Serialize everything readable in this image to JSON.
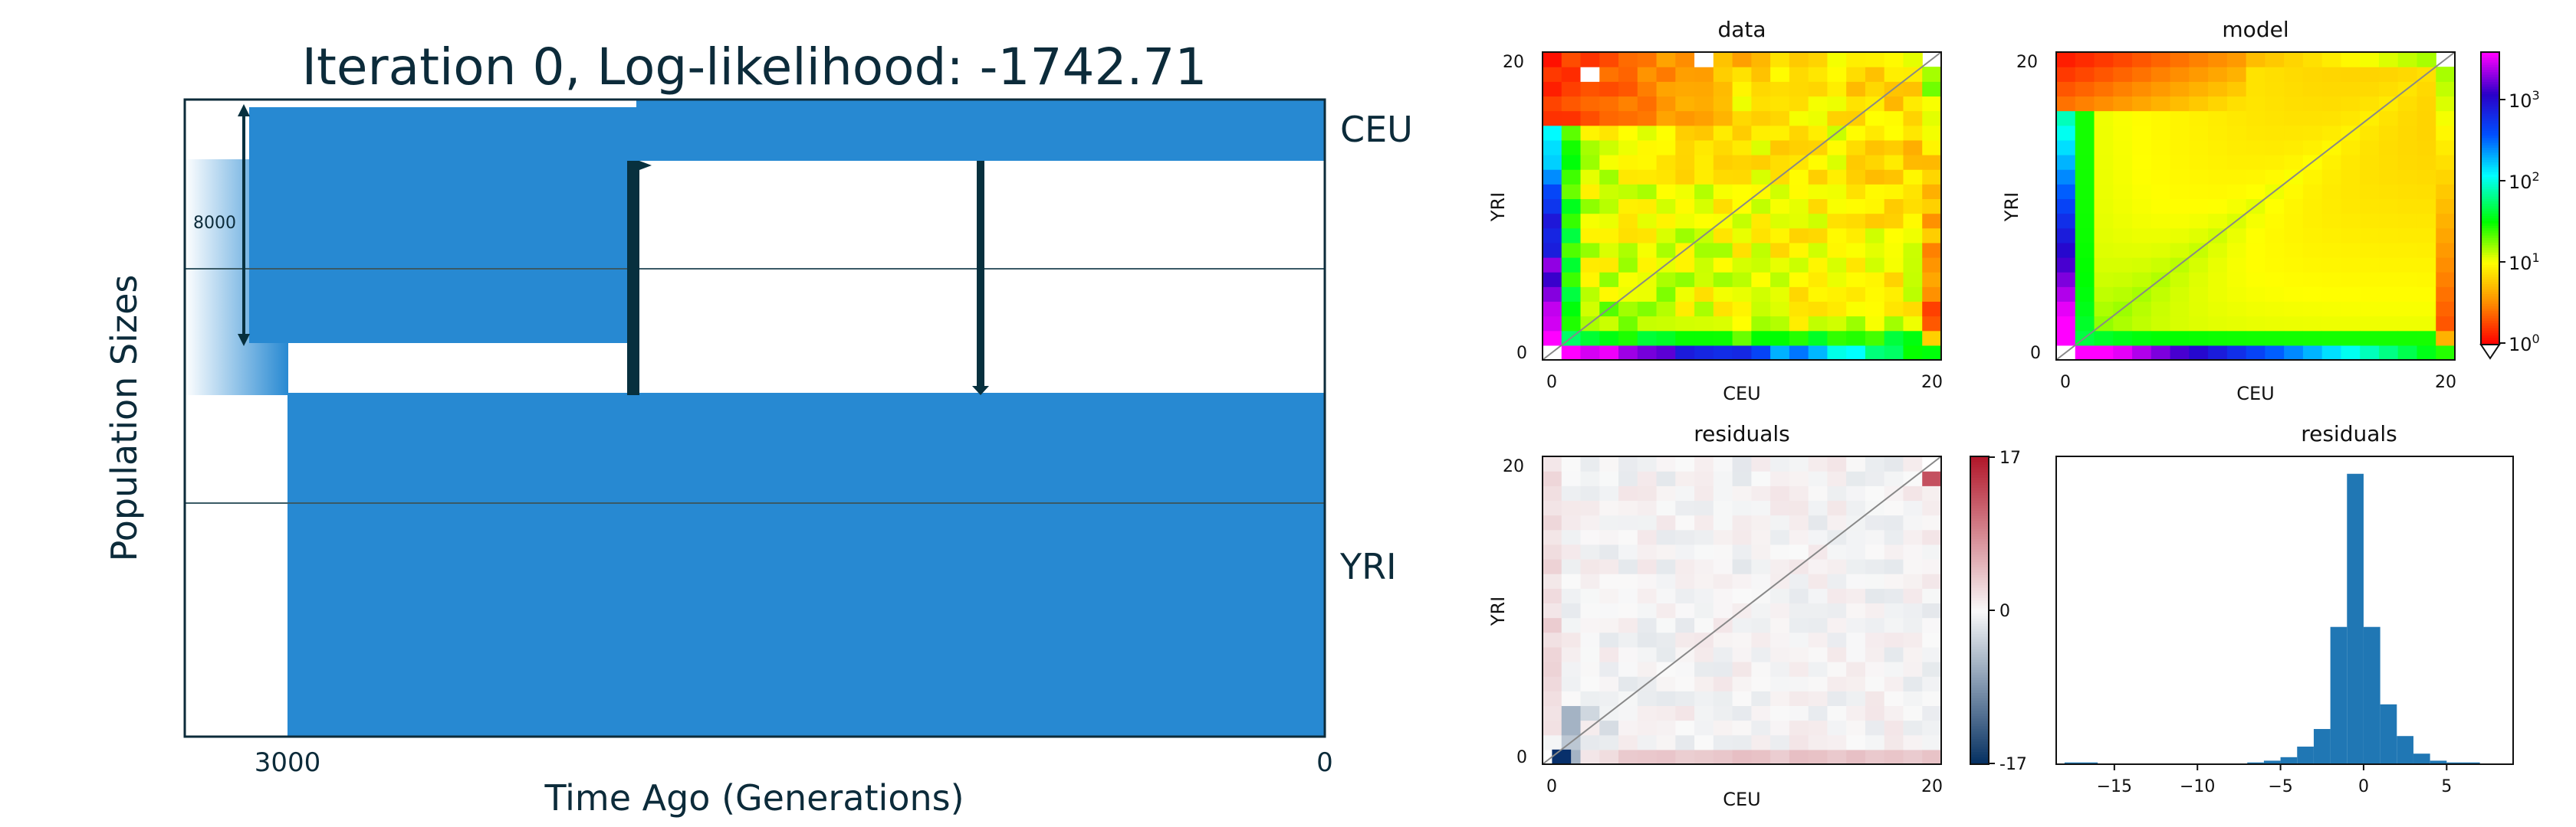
{
  "title": "Iteration 0, Log-likelihood: -1742.71",
  "colors": {
    "population": "#2789d2",
    "population_light": "#cfe4f7",
    "arrow": "#07303e",
    "text": "#0c2b3a",
    "frame": "#0c2b3a",
    "hist": "#2077b4"
  },
  "chart_data": [
    {
      "type": "area",
      "name": "demography",
      "title": "Iteration 0, Log-likelihood: -1742.71",
      "xlabel": "Time Ago (Generations)",
      "ylabel": "Population Sizes",
      "x_ticks": [
        "3000",
        "0"
      ],
      "xlim": [
        3300,
        0
      ],
      "populations": [
        {
          "name": "CEU",
          "label": "CEU",
          "current_size_fraction": 0.09,
          "size_before_bottleneck_fraction": 0.37
        },
        {
          "name": "YRI",
          "label": "YRI",
          "current_size_fraction": 0.55
        }
      ],
      "split_time": 3000,
      "bottleneck_end_time": 1990,
      "migration_pulse_times": [
        1990,
        1000
      ],
      "scale_bar": {
        "label": "8000",
        "value": 8000
      }
    },
    {
      "type": "heatmap",
      "name": "data",
      "title": "data",
      "xlabel": "CEU",
      "ylabel": "YRI",
      "x_ticks": [
        "0",
        "20"
      ],
      "y_ticks": [
        "0",
        "20"
      ],
      "size": 21,
      "colorbar": null
    },
    {
      "type": "heatmap",
      "name": "model",
      "title": "model",
      "xlabel": "CEU",
      "ylabel": "YRI",
      "x_ticks": [
        "0",
        "20"
      ],
      "y_ticks": [
        "0",
        "20"
      ],
      "size": 21,
      "colorbar": {
        "scale": "log",
        "ticks": [
          "10",
          "10",
          "10",
          "10"
        ],
        "exponents": [
          "3",
          "2",
          "1",
          "0"
        ]
      }
    },
    {
      "type": "heatmap",
      "name": "residuals",
      "title": "residuals",
      "xlabel": "CEU",
      "ylabel": "YRI",
      "x_ticks": [
        "0",
        "20"
      ],
      "y_ticks": [
        "0",
        "20"
      ],
      "size": 21,
      "colorbar": {
        "scale": "linear",
        "ticks": [
          "17",
          "0",
          "-17"
        ],
        "range": [
          -17,
          17
        ]
      }
    },
    {
      "type": "bar",
      "name": "residual-histogram",
      "title": "residuals",
      "x_ticks": [
        "−15",
        "−10",
        "−5",
        "0",
        "5"
      ],
      "x_tick_values": [
        -15,
        -10,
        -5,
        0,
        5
      ],
      "xlim": [
        -18.5,
        9
      ],
      "bin_width": 1,
      "bins": [
        {
          "x": -17.5,
          "count": 1
        },
        {
          "x": -16.5,
          "count": 1
        },
        {
          "x": -6.5,
          "count": 1
        },
        {
          "x": -5.5,
          "count": 2
        },
        {
          "x": -4.5,
          "count": 4
        },
        {
          "x": -3.5,
          "count": 10
        },
        {
          "x": -2.5,
          "count": 20
        },
        {
          "x": -1.5,
          "count": 78
        },
        {
          "x": -0.5,
          "count": 165
        },
        {
          "x": 0.5,
          "count": 78
        },
        {
          "x": 1.5,
          "count": 34
        },
        {
          "x": 2.5,
          "count": 16
        },
        {
          "x": 3.5,
          "count": 6
        },
        {
          "x": 4.5,
          "count": 2
        },
        {
          "x": 5.5,
          "count": 1
        },
        {
          "x": 6.5,
          "count": 1
        }
      ]
    }
  ]
}
